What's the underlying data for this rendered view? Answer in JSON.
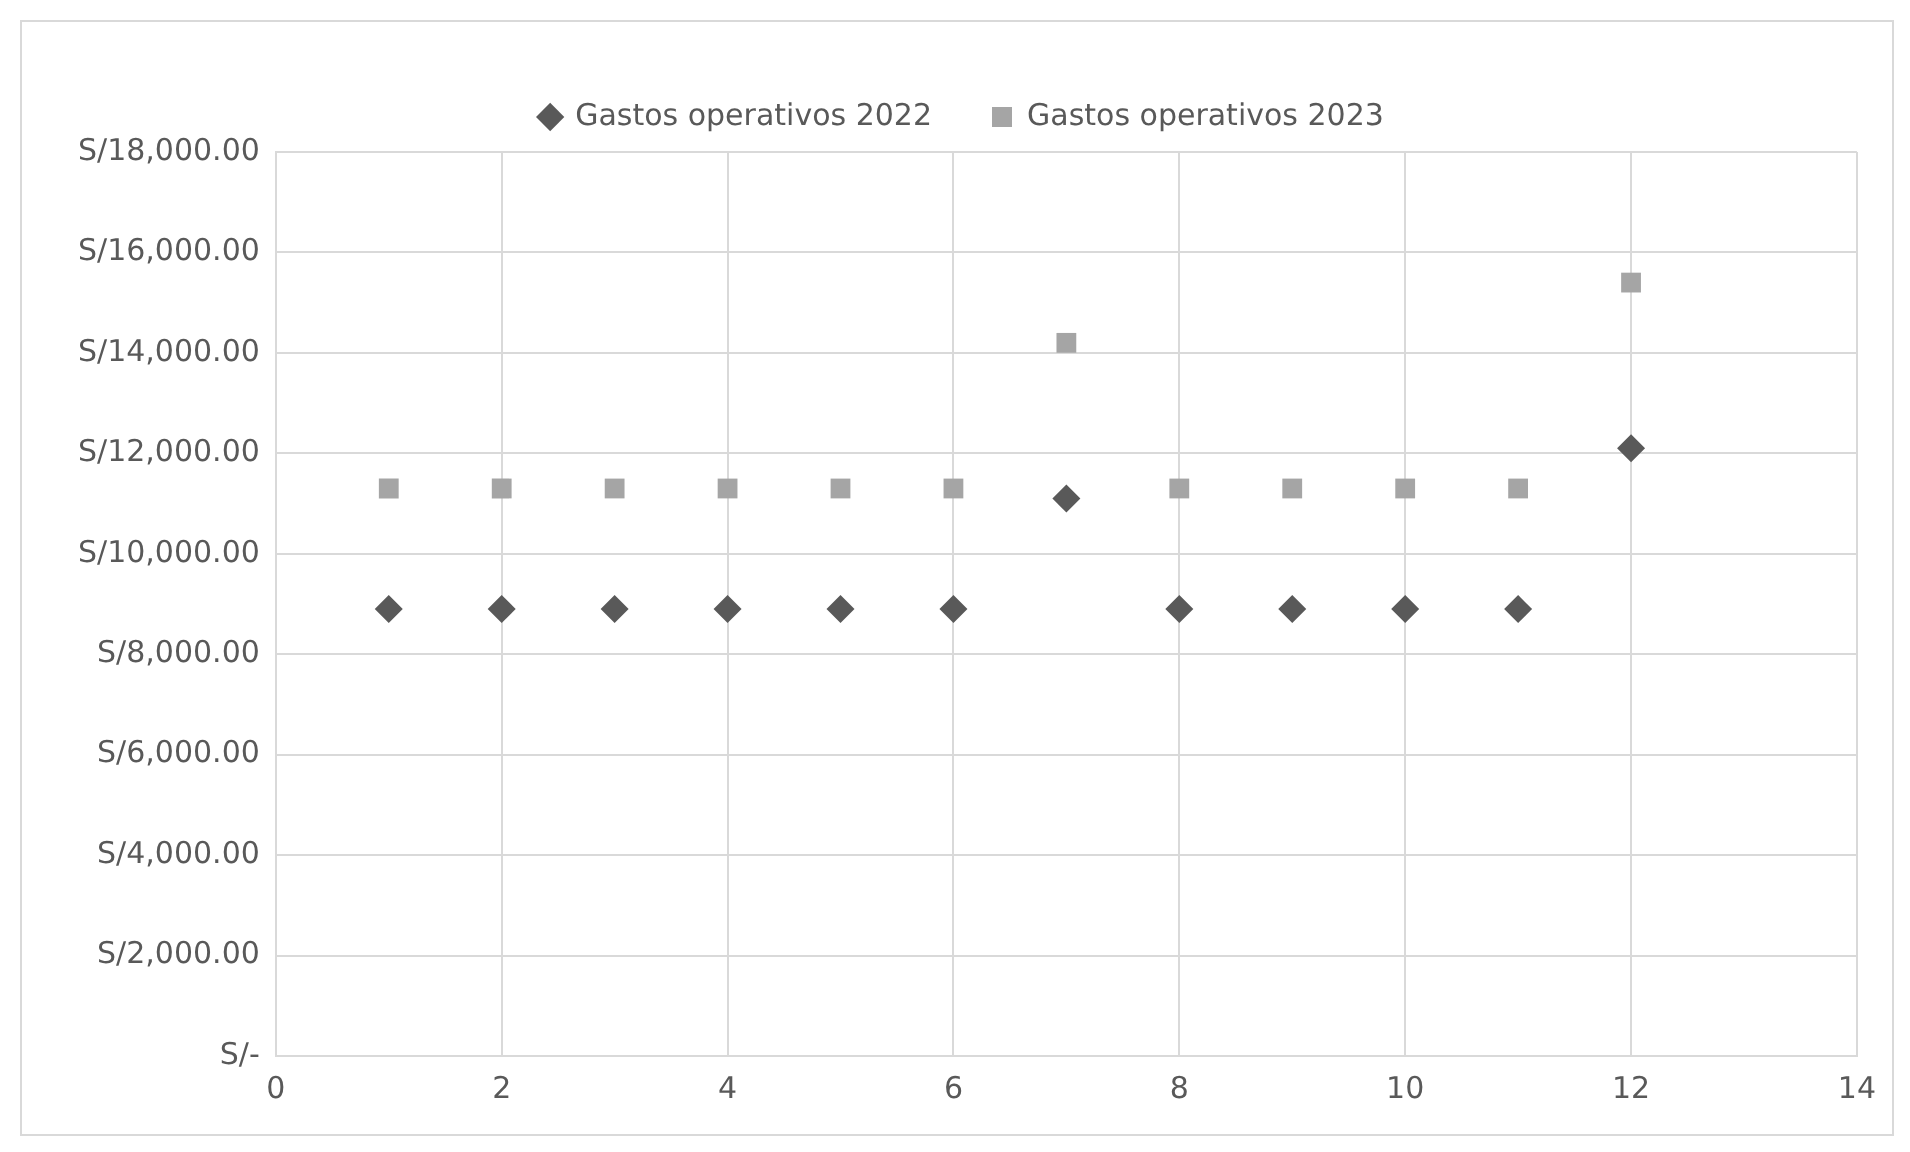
{
  "chart_data": {
    "type": "scatter",
    "x": [
      1,
      2,
      3,
      4,
      5,
      6,
      7,
      8,
      9,
      10,
      11,
      12
    ],
    "series": [
      {
        "name": "Gastos operativos 2022",
        "color": "#595959",
        "marker": "diamond",
        "values": [
          8900,
          8900,
          8900,
          8900,
          8900,
          8900,
          11100,
          8900,
          8900,
          8900,
          8900,
          12100
        ]
      },
      {
        "name": "Gastos operativos 2023",
        "color": "#a5a5a5",
        "marker": "square",
        "values": [
          11300,
          11300,
          11300,
          11300,
          11300,
          11300,
          14200,
          11300,
          11300,
          11300,
          11300,
          15400
        ]
      }
    ],
    "xlim": [
      0,
      14
    ],
    "xticks": [
      0,
      2,
      4,
      6,
      8,
      10,
      12,
      14
    ],
    "ylim": [
      0,
      18000
    ],
    "yticks": [
      {
        "value": 0,
        "label": "S/-"
      },
      {
        "value": 2000,
        "label": "S/2,000.00"
      },
      {
        "value": 4000,
        "label": "S/4,000.00"
      },
      {
        "value": 6000,
        "label": "S/6,000.00"
      },
      {
        "value": 8000,
        "label": "S/8,000.00"
      },
      {
        "value": 10000,
        "label": "S/10,000.00"
      },
      {
        "value": 12000,
        "label": "S/12,000.00"
      },
      {
        "value": 14000,
        "label": "S/14,000.00"
      },
      {
        "value": 16000,
        "label": "S/16,000.00"
      },
      {
        "value": 18000,
        "label": "S/18,000.00"
      }
    ],
    "grid": true,
    "legend": "top"
  }
}
